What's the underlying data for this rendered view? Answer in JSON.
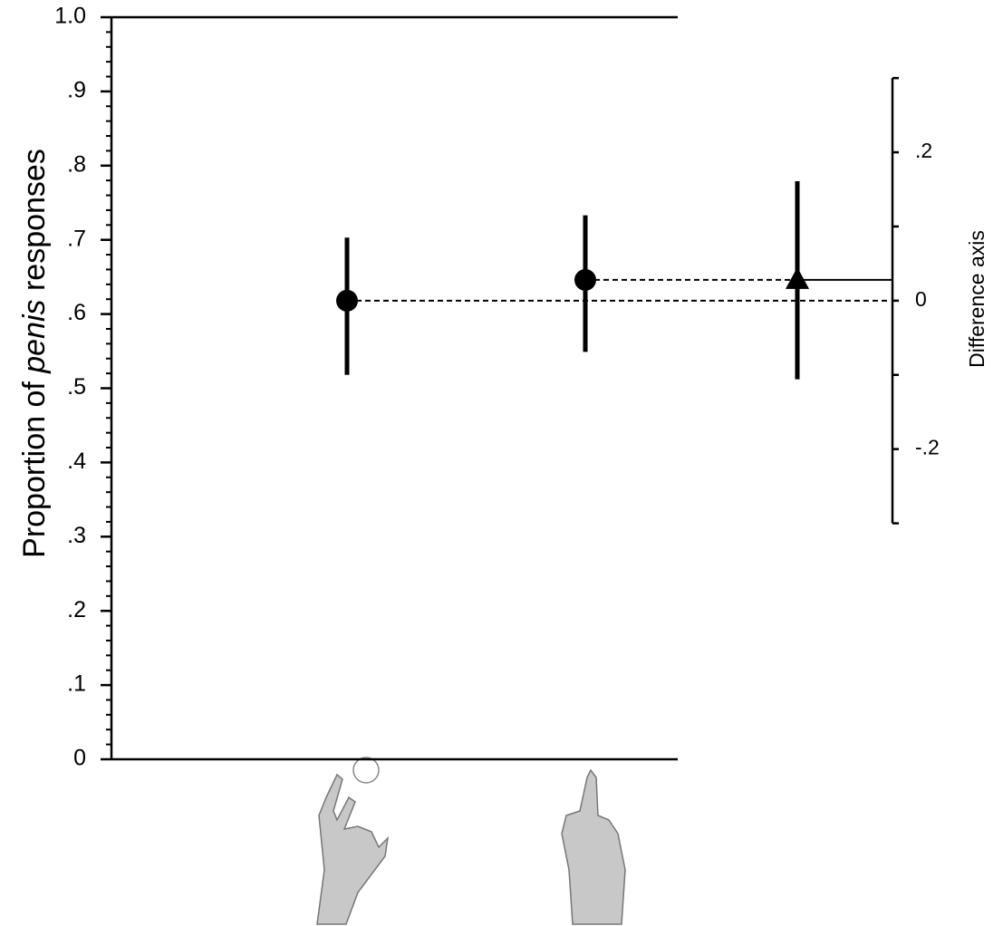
{
  "chart_data": {
    "type": "estimation",
    "ylabel": {
      "before": "Proportion of ",
      "italic": "penis",
      "after": " responses"
    },
    "y2label": "Difference axis",
    "categories": [
      null,
      null
    ],
    "values": [
      0.618,
      0.646
    ],
    "ci_low": [
      0.518,
      0.549
    ],
    "ci_high": [
      0.703,
      0.733
    ],
    "color": "#000000",
    "ylim": [
      0,
      1
    ],
    "yticks": [
      0,
      {
        "value": 0.1,
        "label": ".1"
      },
      {
        "value": 0.2,
        "label": ".2"
      },
      {
        "value": 0.3,
        "label": ".3"
      },
      {
        "value": 0.4,
        "label": ".4"
      },
      {
        "value": 0.5,
        "label": ".5"
      },
      {
        "value": 0.6,
        "label": ".6"
      },
      {
        "value": 0.7,
        "label": ".7"
      },
      {
        "value": 0.8,
        "label": ".8"
      },
      {
        "value": 0.9,
        "label": ".9"
      },
      {
        "value": 1,
        "label": "1.0"
      }
    ],
    "yminor_step": 0.02,
    "difference": 0.028,
    "difference_ci": [
      -0.106,
      0.161
    ],
    "y2lim": [
      -0.3,
      0.3
    ],
    "y2ticks": [
      {
        "value": -0.2,
        "label": "-.2"
      },
      0,
      {
        "value": 0.2,
        "label": ".2"
      }
    ],
    "y2minor_ticks": [
      -0.3,
      -0.1,
      0.1,
      0.3
    ]
  }
}
